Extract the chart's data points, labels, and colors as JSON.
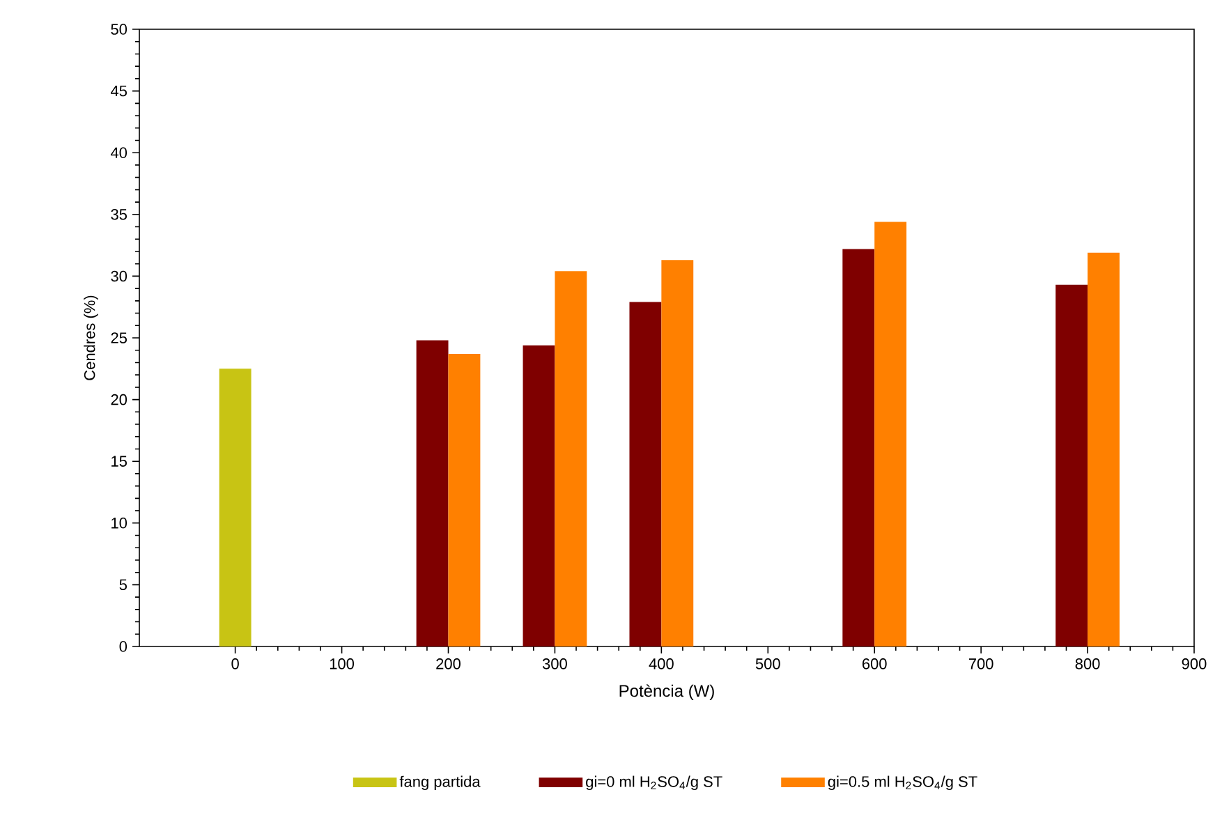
{
  "chart_data": {
    "type": "bar",
    "xlabel": "Potència (W)",
    "ylabel": "Cendres (%)",
    "xlim": [
      -90,
      900
    ],
    "xticks": [
      0,
      100,
      200,
      300,
      400,
      500,
      600,
      700,
      800,
      900
    ],
    "ylim": [
      0,
      50
    ],
    "yticks": [
      0,
      5,
      10,
      15,
      20,
      25,
      30,
      35,
      40,
      45,
      50
    ],
    "legend": "bottom",
    "grid": false,
    "series": [
      {
        "name": "fang partida",
        "color": "#c8c414",
        "x": [
          0
        ],
        "values": [
          22.5
        ]
      },
      {
        "name": "gi=0 ml H$_{2}$SO$_{4}$/g ST",
        "color": "#7f0000",
        "x": [
          200,
          300,
          400,
          600,
          800
        ],
        "values": [
          24.8,
          24.4,
          27.9,
          32.2,
          29.3
        ]
      },
      {
        "name": "gi=0.5 ml H$_{2}$SO$_{4}$/g ST",
        "color": "#ff8000",
        "x": [
          200,
          300,
          400,
          600,
          800
        ],
        "values": [
          23.7,
          30.4,
          31.3,
          34.4,
          31.9
        ]
      }
    ]
  }
}
